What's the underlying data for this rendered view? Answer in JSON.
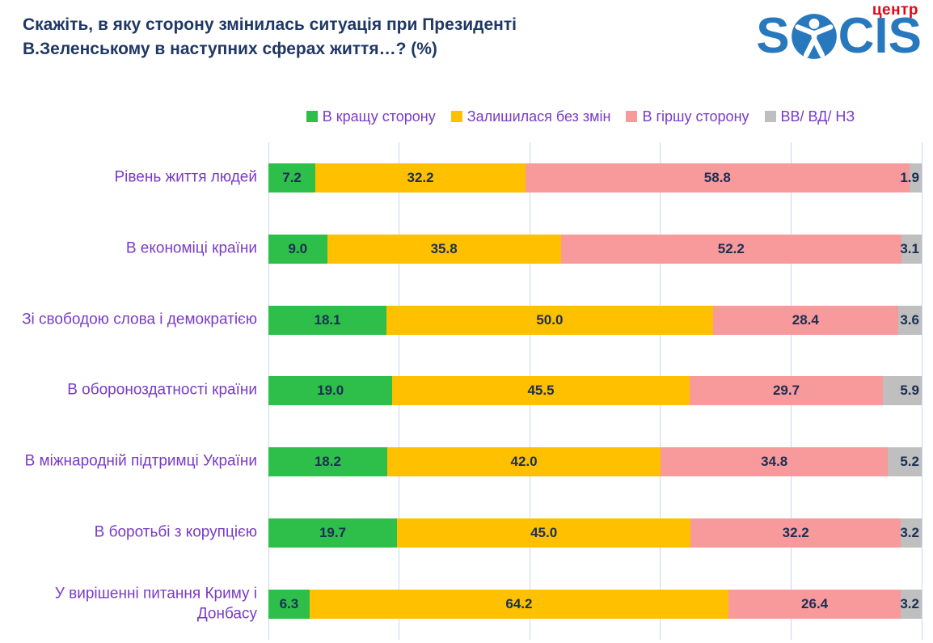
{
  "header": {
    "title_line1": "Скажіть, в яку сторону змінилась ситуація при Президенті",
    "title_line2": "В.Зеленському в наступних сферах життя…? (%)",
    "logo": {
      "brand_prefix": "S",
      "brand_suffix": "CIS",
      "brand_sub": "центр",
      "brand_color": "#2878BE",
      "sub_color": "#E30613",
      "o_icon": "person-in-circle-icon"
    }
  },
  "legend": [
    {
      "label": "В кращу сторону",
      "color": "#2EBE4A"
    },
    {
      "label": "Залишилася без змін",
      "color": "#FFC000"
    },
    {
      "label": "В гіршу сторону",
      "color": "#F8999B"
    },
    {
      "label": "ВВ/ ВД/ НЗ",
      "color": "#BFBFBF"
    }
  ],
  "chart_data": {
    "type": "bar",
    "orientation": "horizontal",
    "stacked": true,
    "xlim": [
      0,
      100
    ],
    "grid": true,
    "gridline_step_percent": 20,
    "gridline_color": "#C9D6F0",
    "value_label_color": "#1B2F52",
    "category_label_color": "#7A3BC8",
    "categories": [
      "Рівень життя людей",
      "В економіці країни",
      "Зі свободою слова і демократією",
      "В обороноздатності країни",
      "В міжнародній підтримці України",
      "В боротьбі з корупцією",
      "У вирішенні питання Криму і Донбасу"
    ],
    "series": [
      {
        "name": "В кращу сторону",
        "color": "#2EBE4A",
        "values": [
          7.2,
          9.0,
          18.1,
          19.0,
          18.2,
          19.7,
          6.3
        ]
      },
      {
        "name": "Залишилася без змін",
        "color": "#FFC000",
        "values": [
          32.2,
          35.8,
          50.0,
          45.5,
          42.0,
          45.0,
          64.2
        ]
      },
      {
        "name": "В гіршу сторону",
        "color": "#F8999B",
        "values": [
          58.8,
          52.2,
          28.4,
          29.7,
          34.8,
          32.2,
          26.4
        ]
      },
      {
        "name": "ВВ/ ВД/ НЗ",
        "color": "#BFBFBF",
        "values": [
          1.9,
          3.1,
          3.6,
          5.9,
          5.2,
          3.2,
          3.2
        ]
      }
    ]
  }
}
